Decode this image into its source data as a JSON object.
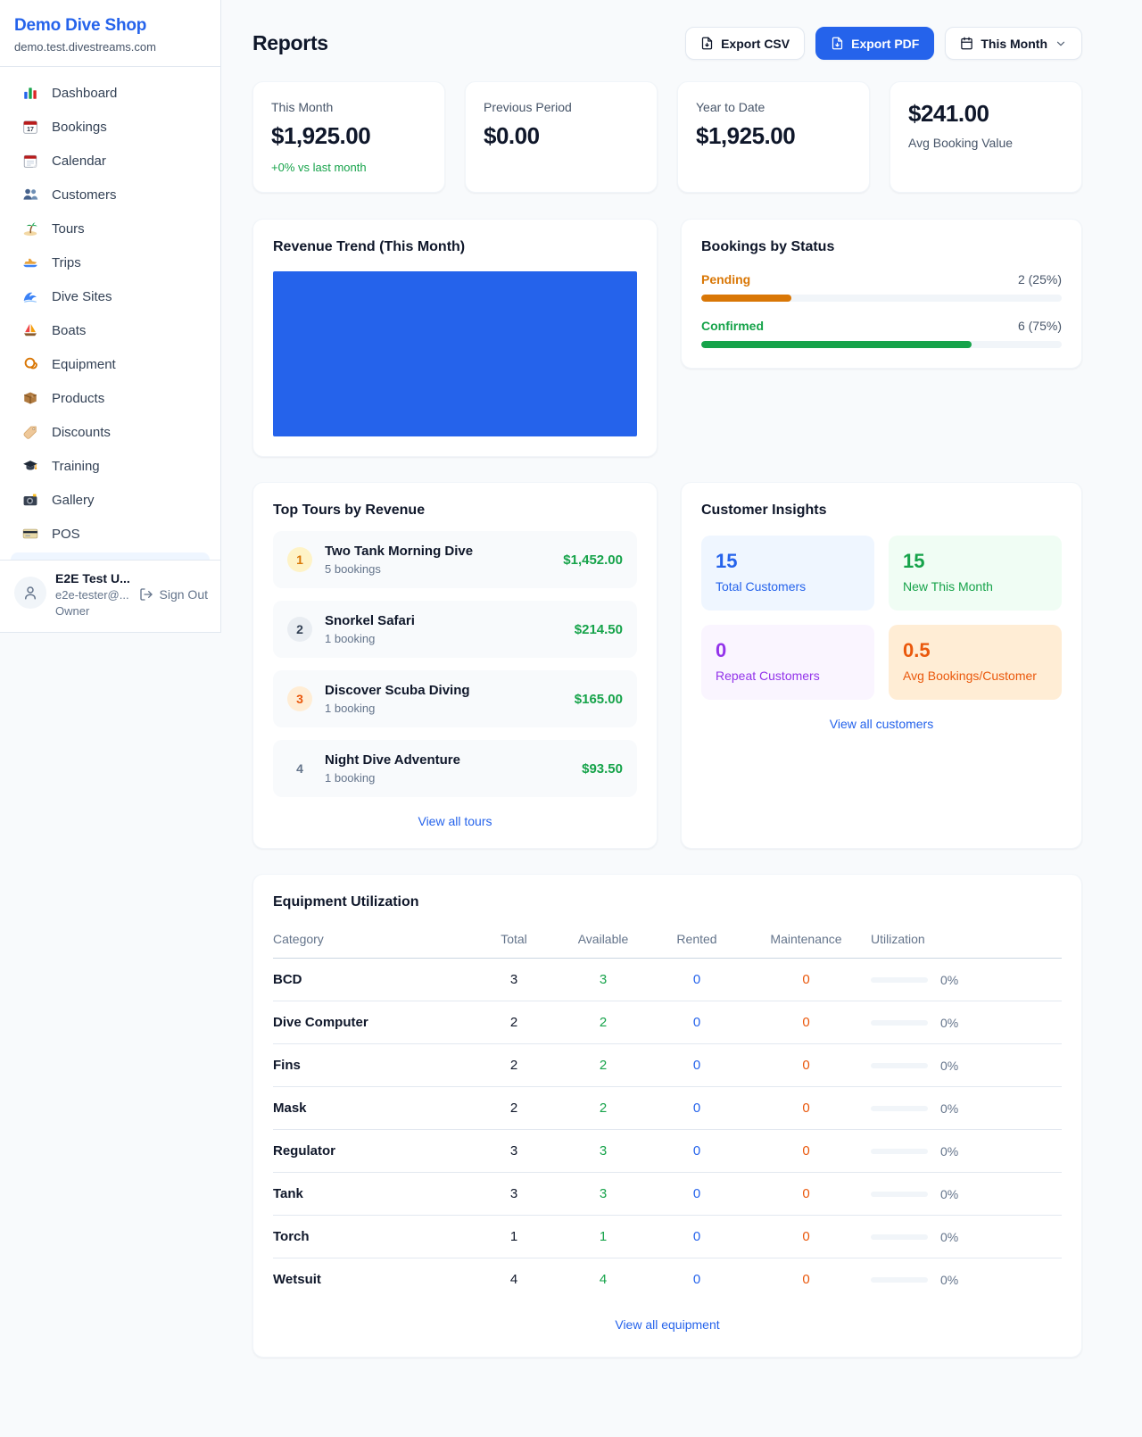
{
  "colors": {
    "accent_blue": "#2563eb",
    "green": "#16a34a",
    "amber": "#d97706",
    "orange": "#ea580c",
    "purple": "#9333ea"
  },
  "sidebar": {
    "shop_name": "Demo Dive Shop",
    "shop_domain": "demo.test.divestreams.com",
    "nav": [
      {
        "item_name": "sidebar-item-dashboard",
        "icon_name": "bar-chart-icon",
        "label": "Dashboard"
      },
      {
        "item_name": "sidebar-item-bookings",
        "icon_name": "calendar-icon",
        "label": "Bookings"
      },
      {
        "item_name": "sidebar-item-calendar",
        "icon_name": "tear-off-calendar-icon",
        "label": "Calendar"
      },
      {
        "item_name": "sidebar-item-customers",
        "icon_name": "people-icon",
        "label": "Customers"
      },
      {
        "item_name": "sidebar-item-tours",
        "icon_name": "island-icon",
        "label": "Tours"
      },
      {
        "item_name": "sidebar-item-trips",
        "icon_name": "speedboat-icon",
        "label": "Trips"
      },
      {
        "item_name": "sidebar-item-dive-sites",
        "icon_name": "wave-icon",
        "label": "Dive Sites"
      },
      {
        "item_name": "sidebar-item-boats",
        "icon_name": "sailboat-icon",
        "label": "Boats"
      },
      {
        "item_name": "sidebar-item-equipment",
        "icon_name": "diving-mask-icon",
        "label": "Equipment"
      },
      {
        "item_name": "sidebar-item-products",
        "icon_name": "package-icon",
        "label": "Products"
      },
      {
        "item_name": "sidebar-item-discounts",
        "icon_name": "tag-icon",
        "label": "Discounts"
      },
      {
        "item_name": "sidebar-item-training",
        "icon_name": "graduation-cap-icon",
        "label": "Training"
      },
      {
        "item_name": "sidebar-item-gallery",
        "icon_name": "camera-icon",
        "label": "Gallery"
      },
      {
        "item_name": "sidebar-item-pos",
        "icon_name": "credit-card-icon",
        "label": "POS"
      }
    ],
    "user": {
      "name": "E2E Test U...",
      "email": "e2e-tester@...",
      "role": "Owner",
      "sign_out_label": "Sign Out"
    }
  },
  "header": {
    "title": "Reports",
    "export_csv_label": "Export CSV",
    "export_pdf_label": "Export PDF",
    "period_label": "This Month"
  },
  "stats": {
    "this_month": {
      "label": "This Month",
      "value": "$1,925.00",
      "delta": "+0% vs last month"
    },
    "previous_period": {
      "label": "Previous Period",
      "value": "$0.00"
    },
    "year_to_date": {
      "label": "Year to Date",
      "value": "$1,925.00"
    },
    "avg_booking": {
      "value": "$241.00",
      "label": "Avg Booking Value"
    }
  },
  "revenue_trend": {
    "title": "Revenue Trend (This Month)",
    "bar_pct": 100
  },
  "bookings_by_status": {
    "title": "Bookings by Status",
    "rows": [
      {
        "label": "Pending",
        "count": "2 (25%)",
        "pct": 25
      },
      {
        "label": "Confirmed",
        "count": "6 (75%)",
        "pct": 75
      }
    ]
  },
  "top_tours": {
    "title": "Top Tours by Revenue",
    "items": [
      {
        "rank": "1",
        "name": "Two Tank Morning Dive",
        "bookings": "5 bookings",
        "amount": "$1,452.00"
      },
      {
        "rank": "2",
        "name": "Snorkel Safari",
        "bookings": "1 booking",
        "amount": "$214.50"
      },
      {
        "rank": "3",
        "name": "Discover Scuba Diving",
        "bookings": "1 booking",
        "amount": "$165.00"
      },
      {
        "rank": "4",
        "name": "Night Dive Adventure",
        "bookings": "1 booking",
        "amount": "$93.50"
      }
    ],
    "view_all": "View all tours"
  },
  "customer_insights": {
    "title": "Customer Insights",
    "tiles": [
      {
        "value": "15",
        "label": "Total Customers"
      },
      {
        "value": "15",
        "label": "New This Month"
      },
      {
        "value": "0",
        "label": "Repeat Customers"
      },
      {
        "value": "0.5",
        "label": "Avg Bookings/Customer"
      }
    ],
    "view_all": "View all customers"
  },
  "equipment": {
    "title": "Equipment Utilization",
    "columns": [
      "Category",
      "Total",
      "Available",
      "Rented",
      "Maintenance",
      "Utilization"
    ],
    "rows": [
      {
        "category": "BCD",
        "total": "3",
        "available": "3",
        "rented": "0",
        "maintenance": "0",
        "utilization_pct": 0,
        "utilization_text": "0%"
      },
      {
        "category": "Dive Computer",
        "total": "2",
        "available": "2",
        "rented": "0",
        "maintenance": "0",
        "utilization_pct": 0,
        "utilization_text": "0%"
      },
      {
        "category": "Fins",
        "total": "2",
        "available": "2",
        "rented": "0",
        "maintenance": "0",
        "utilization_pct": 0,
        "utilization_text": "0%"
      },
      {
        "category": "Mask",
        "total": "2",
        "available": "2",
        "rented": "0",
        "maintenance": "0",
        "utilization_pct": 0,
        "utilization_text": "0%"
      },
      {
        "category": "Regulator",
        "total": "3",
        "available": "3",
        "rented": "0",
        "maintenance": "0",
        "utilization_pct": 0,
        "utilization_text": "0%"
      },
      {
        "category": "Tank",
        "total": "3",
        "available": "3",
        "rented": "0",
        "maintenance": "0",
        "utilization_pct": 0,
        "utilization_text": "0%"
      },
      {
        "category": "Torch",
        "total": "1",
        "available": "1",
        "rented": "0",
        "maintenance": "0",
        "utilization_pct": 0,
        "utilization_text": "0%"
      },
      {
        "category": "Wetsuit",
        "total": "4",
        "available": "4",
        "rented": "0",
        "maintenance": "0",
        "utilization_pct": 0,
        "utilization_text": "0%"
      }
    ],
    "view_all": "View all equipment"
  }
}
